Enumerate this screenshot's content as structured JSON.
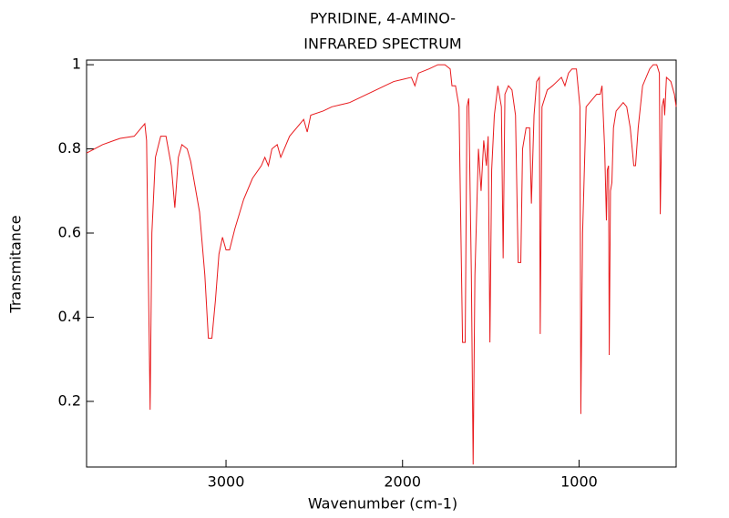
{
  "chart_data": {
    "type": "line",
    "title": "PYRIDINE, 4-AMINO-",
    "subtitle": "INFRARED SPECTRUM",
    "x_label": "Wavenumber (cm-1)",
    "y_label": "Transmitance",
    "xlim": [
      3790,
      450
    ],
    "ylim": [
      0.044,
      1.011
    ],
    "xticks": [
      3000,
      2000,
      1000
    ],
    "yticks": [
      0.2,
      0.4,
      0.6,
      0.8,
      1
    ],
    "series": [
      {
        "color": "#e8191c",
        "x": [
          3790,
          3700,
          3600,
          3520,
          3480,
          3460,
          3450,
          3430,
          3420,
          3400,
          3370,
          3340,
          3310,
          3290,
          3270,
          3250,
          3220,
          3200,
          3150,
          3120,
          3100,
          3080,
          3060,
          3040,
          3020,
          3000,
          2980,
          2950,
          2900,
          2850,
          2800,
          2780,
          2760,
          2740,
          2710,
          2690,
          2670,
          2640,
          2600,
          2560,
          2540,
          2520,
          2450,
          2400,
          2350,
          2300,
          2250,
          2200,
          2150,
          2100,
          2050,
          2000,
          1950,
          1930,
          1910,
          1850,
          1800,
          1760,
          1730,
          1720,
          1700,
          1680,
          1660,
          1645,
          1635,
          1625,
          1610,
          1600,
          1590,
          1570,
          1555,
          1540,
          1525,
          1515,
          1505,
          1495,
          1480,
          1460,
          1440,
          1430,
          1420,
          1400,
          1380,
          1360,
          1345,
          1330,
          1320,
          1300,
          1280,
          1270,
          1255,
          1240,
          1225,
          1220,
          1210,
          1180,
          1150,
          1100,
          1080,
          1060,
          1040,
          1015,
          995,
          990,
          980,
          960,
          940,
          920,
          900,
          880,
          870,
          855,
          845,
          840,
          833,
          829,
          822,
          814,
          805,
          790,
          770,
          750,
          730,
          710,
          690,
          680,
          665,
          640,
          600,
          580,
          560,
          545,
          540,
          530,
          520,
          515,
          505,
          480,
          460,
          450
        ],
        "values": [
          0.79,
          0.81,
          0.825,
          0.83,
          0.85,
          0.86,
          0.82,
          0.18,
          0.6,
          0.78,
          0.83,
          0.83,
          0.76,
          0.66,
          0.78,
          0.81,
          0.8,
          0.77,
          0.65,
          0.5,
          0.35,
          0.35,
          0.44,
          0.55,
          0.59,
          0.56,
          0.56,
          0.61,
          0.68,
          0.73,
          0.76,
          0.78,
          0.76,
          0.8,
          0.81,
          0.78,
          0.8,
          0.83,
          0.85,
          0.87,
          0.84,
          0.88,
          0.89,
          0.9,
          0.905,
          0.91,
          0.92,
          0.93,
          0.94,
          0.95,
          0.96,
          0.965,
          0.97,
          0.95,
          0.98,
          0.99,
          1.0,
          1.0,
          0.99,
          0.95,
          0.95,
          0.9,
          0.34,
          0.34,
          0.9,
          0.92,
          0.5,
          0.05,
          0.5,
          0.8,
          0.7,
          0.82,
          0.76,
          0.83,
          0.34,
          0.75,
          0.88,
          0.95,
          0.9,
          0.54,
          0.93,
          0.95,
          0.94,
          0.88,
          0.53,
          0.53,
          0.8,
          0.85,
          0.85,
          0.67,
          0.88,
          0.96,
          0.97,
          0.36,
          0.9,
          0.94,
          0.95,
          0.97,
          0.95,
          0.98,
          0.99,
          0.99,
          0.9,
          0.17,
          0.6,
          0.9,
          0.91,
          0.92,
          0.93,
          0.93,
          0.95,
          0.8,
          0.63,
          0.75,
          0.76,
          0.31,
          0.7,
          0.72,
          0.85,
          0.89,
          0.9,
          0.91,
          0.9,
          0.85,
          0.76,
          0.76,
          0.85,
          0.95,
          0.99,
          1.0,
          1.0,
          0.98,
          0.645,
          0.9,
          0.92,
          0.88,
          0.97,
          0.96,
          0.93,
          0.9
        ]
      }
    ]
  }
}
